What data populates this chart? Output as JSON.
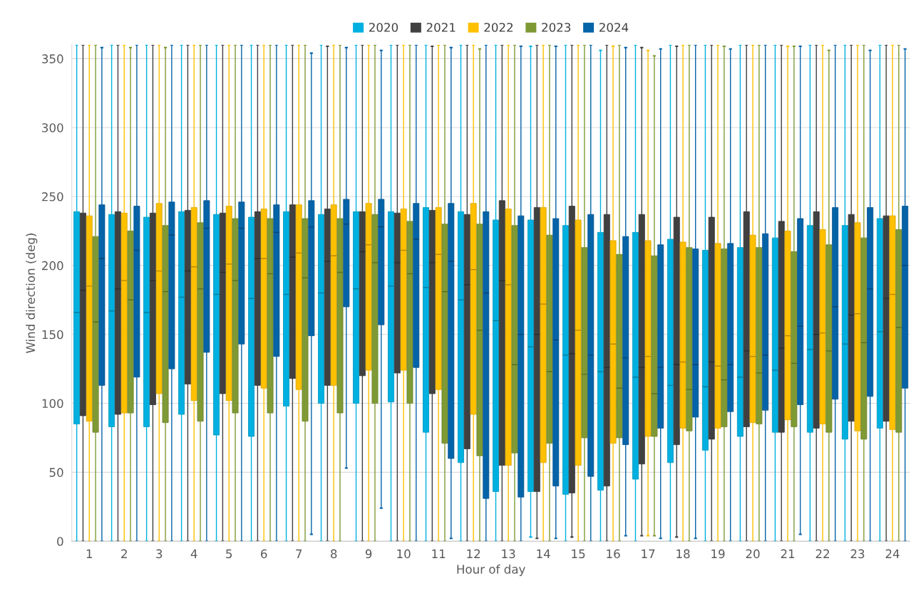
{
  "chart_data": {
    "type": "box",
    "xlabel": "Hour of day",
    "ylabel": "Wind direction (deg)",
    "categories": [
      "1",
      "2",
      "3",
      "4",
      "5",
      "6",
      "7",
      "8",
      "9",
      "10",
      "11",
      "12",
      "13",
      "14",
      "15",
      "16",
      "17",
      "18",
      "19",
      "20",
      "21",
      "22",
      "23",
      "24"
    ],
    "ylim": [
      0,
      360
    ],
    "yticks": [
      0,
      50,
      100,
      150,
      200,
      250,
      300,
      350
    ],
    "grid": "y",
    "legend": "top",
    "series": [
      {
        "name": "2020",
        "color": "#00b0e0",
        "boxes": [
          {
            "low": 0,
            "q1": 85,
            "median": 166,
            "q3": 239,
            "high": 360
          },
          {
            "low": 0,
            "q1": 83,
            "median": 167,
            "q3": 237,
            "high": 360
          },
          {
            "low": 0,
            "q1": 83,
            "median": 166,
            "q3": 235,
            "high": 360
          },
          {
            "low": 0,
            "q1": 92,
            "median": 177,
            "q3": 239,
            "high": 360
          },
          {
            "low": 0,
            "q1": 77,
            "median": 179,
            "q3": 237,
            "high": 360
          },
          {
            "low": 0,
            "q1": 76,
            "median": 176,
            "q3": 235,
            "high": 360
          },
          {
            "low": 0,
            "q1": 98,
            "median": 179,
            "q3": 239,
            "high": 360
          },
          {
            "low": 0,
            "q1": 100,
            "median": 180,
            "q3": 237,
            "high": 360
          },
          {
            "low": 0,
            "q1": 100,
            "median": 183,
            "q3": 239,
            "high": 360
          },
          {
            "low": 0,
            "q1": 101,
            "median": 185,
            "q3": 239,
            "high": 360
          },
          {
            "low": 0,
            "q1": 79,
            "median": 184,
            "q3": 242,
            "high": 360
          },
          {
            "low": 0,
            "q1": 57,
            "median": 175,
            "q3": 239,
            "high": 360
          },
          {
            "low": 0,
            "q1": 36,
            "median": 160,
            "q3": 233,
            "high": 360
          },
          {
            "low": 3,
            "q1": 36,
            "median": 141,
            "q3": 233,
            "high": 359
          },
          {
            "low": 0,
            "q1": 34,
            "median": 135,
            "q3": 229,
            "high": 360
          },
          {
            "low": 0,
            "q1": 37,
            "median": 123,
            "q3": 224,
            "high": 356
          },
          {
            "low": 0,
            "q1": 45,
            "median": 119,
            "q3": 224,
            "high": 360
          },
          {
            "low": 0,
            "q1": 57,
            "median": 113,
            "q3": 219,
            "high": 360
          },
          {
            "low": 0,
            "q1": 66,
            "median": 112,
            "q3": 211,
            "high": 360
          },
          {
            "low": 0,
            "q1": 76,
            "median": 119,
            "q3": 213,
            "high": 360
          },
          {
            "low": 0,
            "q1": 79,
            "median": 124,
            "q3": 220,
            "high": 360
          },
          {
            "low": 0,
            "q1": 79,
            "median": 139,
            "q3": 229,
            "high": 360
          },
          {
            "low": 0,
            "q1": 74,
            "median": 143,
            "q3": 229,
            "high": 360
          },
          {
            "low": 0,
            "q1": 82,
            "median": 152,
            "q3": 234,
            "high": 360
          }
        ]
      },
      {
        "name": "2021",
        "color": "#404040",
        "boxes": [
          {
            "low": 0,
            "q1": 91,
            "median": 182,
            "q3": 238,
            "high": 360
          },
          {
            "low": 0,
            "q1": 92,
            "median": 183,
            "q3": 239,
            "high": 360
          },
          {
            "low": 0,
            "q1": 99,
            "median": 189,
            "q3": 238,
            "high": 360
          },
          {
            "low": 0,
            "q1": 114,
            "median": 196,
            "q3": 240,
            "high": 360
          },
          {
            "low": 0,
            "q1": 107,
            "median": 195,
            "q3": 238,
            "high": 360
          },
          {
            "low": 0,
            "q1": 113,
            "median": 205,
            "q3": 239,
            "high": 360
          },
          {
            "low": 0,
            "q1": 118,
            "median": 206,
            "q3": 244,
            "high": 360
          },
          {
            "low": 0,
            "q1": 113,
            "median": 203,
            "q3": 241,
            "high": 359
          },
          {
            "low": 0,
            "q1": 120,
            "median": 210,
            "q3": 239,
            "high": 360
          },
          {
            "low": 0,
            "q1": 122,
            "median": 202,
            "q3": 238,
            "high": 360
          },
          {
            "low": 0,
            "q1": 107,
            "median": 202,
            "q3": 240,
            "high": 359
          },
          {
            "low": 0,
            "q1": 67,
            "median": 186,
            "q3": 237,
            "high": 360
          },
          {
            "low": 0,
            "q1": 55,
            "median": 189,
            "q3": 247,
            "high": 360
          },
          {
            "low": 2,
            "q1": 36,
            "median": 150,
            "q3": 242,
            "high": 360
          },
          {
            "low": 3,
            "q1": 35,
            "median": 136,
            "q3": 243,
            "high": 360
          },
          {
            "low": 0,
            "q1": 40,
            "median": 126,
            "q3": 237,
            "high": 360
          },
          {
            "low": 4,
            "q1": 56,
            "median": 126,
            "q3": 237,
            "high": 358
          },
          {
            "low": 3,
            "q1": 70,
            "median": 128,
            "q3": 235,
            "high": 359
          },
          {
            "low": 0,
            "q1": 74,
            "median": 130,
            "q3": 235,
            "high": 360
          },
          {
            "low": 0,
            "q1": 83,
            "median": 138,
            "q3": 239,
            "high": 360
          },
          {
            "low": 0,
            "q1": 79,
            "median": 140,
            "q3": 232,
            "high": 360
          },
          {
            "low": 0,
            "q1": 82,
            "median": 150,
            "q3": 239,
            "high": 360
          },
          {
            "low": 0,
            "q1": 87,
            "median": 164,
            "q3": 237,
            "high": 360
          },
          {
            "low": 0,
            "q1": 87,
            "median": 176,
            "q3": 236,
            "high": 360
          }
        ]
      },
      {
        "name": "2022",
        "color": "#ffc000",
        "boxes": [
          {
            "low": 0,
            "q1": 87,
            "median": 185,
            "q3": 236,
            "high": 360
          },
          {
            "low": 0,
            "q1": 93,
            "median": 189,
            "q3": 238,
            "high": 360
          },
          {
            "low": 0,
            "q1": 107,
            "median": 196,
            "q3": 245,
            "high": 360
          },
          {
            "low": 0,
            "q1": 102,
            "median": 199,
            "q3": 242,
            "high": 360
          },
          {
            "low": 0,
            "q1": 102,
            "median": 201,
            "q3": 243,
            "high": 360
          },
          {
            "low": 0,
            "q1": 111,
            "median": 205,
            "q3": 241,
            "high": 360
          },
          {
            "low": 0,
            "q1": 110,
            "median": 209,
            "q3": 244,
            "high": 360
          },
          {
            "low": 0,
            "q1": 113,
            "median": 207,
            "q3": 244,
            "high": 360
          },
          {
            "low": 0,
            "q1": 124,
            "median": 215,
            "q3": 245,
            "high": 360
          },
          {
            "low": 0,
            "q1": 124,
            "median": 211,
            "q3": 241,
            "high": 360
          },
          {
            "low": 0,
            "q1": 110,
            "median": 208,
            "q3": 242,
            "high": 360
          },
          {
            "low": 0,
            "q1": 92,
            "median": 197,
            "q3": 245,
            "high": 360
          },
          {
            "low": 0,
            "q1": 55,
            "median": 186,
            "q3": 241,
            "high": 360
          },
          {
            "low": 0,
            "q1": 57,
            "median": 172,
            "q3": 242,
            "high": 360
          },
          {
            "low": 0,
            "q1": 55,
            "median": 153,
            "q3": 233,
            "high": 360
          },
          {
            "low": 0,
            "q1": 71,
            "median": 143,
            "q3": 218,
            "high": 359
          },
          {
            "low": 4,
            "q1": 76,
            "median": 134,
            "q3": 218,
            "high": 356
          },
          {
            "low": 0,
            "q1": 82,
            "median": 130,
            "q3": 217,
            "high": 360
          },
          {
            "low": 0,
            "q1": 82,
            "median": 127,
            "q3": 216,
            "high": 360
          },
          {
            "low": 0,
            "q1": 86,
            "median": 134,
            "q3": 222,
            "high": 360
          },
          {
            "low": 0,
            "q1": 88,
            "median": 149,
            "q3": 225,
            "high": 359
          },
          {
            "low": 0,
            "q1": 85,
            "median": 151,
            "q3": 226,
            "high": 360
          },
          {
            "low": 0,
            "q1": 80,
            "median": 165,
            "q3": 231,
            "high": 360
          },
          {
            "low": 0,
            "q1": 81,
            "median": 179,
            "q3": 236,
            "high": 360
          }
        ]
      },
      {
        "name": "2023",
        "color": "#7f9a35",
        "boxes": [
          {
            "low": 0,
            "q1": 79,
            "median": 159,
            "q3": 221,
            "high": 360
          },
          {
            "low": 0,
            "q1": 93,
            "median": 175,
            "q3": 225,
            "high": 358
          },
          {
            "low": 0,
            "q1": 86,
            "median": 181,
            "q3": 229,
            "high": 358
          },
          {
            "low": 0,
            "q1": 87,
            "median": 183,
            "q3": 231,
            "high": 360
          },
          {
            "low": 0,
            "q1": 93,
            "median": 189,
            "q3": 234,
            "high": 360
          },
          {
            "low": 0,
            "q1": 93,
            "median": 194,
            "q3": 234,
            "high": 360
          },
          {
            "low": 0,
            "q1": 87,
            "median": 191,
            "q3": 234,
            "high": 360
          },
          {
            "low": 0,
            "q1": 93,
            "median": 195,
            "q3": 234,
            "high": 360
          },
          {
            "low": 0,
            "q1": 100,
            "median": 202,
            "q3": 237,
            "high": 360
          },
          {
            "low": 0,
            "q1": 100,
            "median": 194,
            "q3": 232,
            "high": 360
          },
          {
            "low": 0,
            "q1": 71,
            "median": 181,
            "q3": 230,
            "high": 360
          },
          {
            "low": 0,
            "q1": 62,
            "median": 153,
            "q3": 230,
            "high": 357
          },
          {
            "low": 0,
            "q1": 64,
            "median": 128,
            "q3": 229,
            "high": 360
          },
          {
            "low": 0,
            "q1": 71,
            "median": 123,
            "q3": 222,
            "high": 360
          },
          {
            "low": 0,
            "q1": 75,
            "median": 121,
            "q3": 213,
            "high": 360
          },
          {
            "low": 0,
            "q1": 75,
            "median": 111,
            "q3": 208,
            "high": 360
          },
          {
            "low": 4,
            "q1": 76,
            "median": 107,
            "q3": 207,
            "high": 352
          },
          {
            "low": 0,
            "q1": 80,
            "median": 110,
            "q3": 213,
            "high": 360
          },
          {
            "low": 0,
            "q1": 83,
            "median": 117,
            "q3": 212,
            "high": 359
          },
          {
            "low": 0,
            "q1": 85,
            "median": 122,
            "q3": 213,
            "high": 360
          },
          {
            "low": 0,
            "q1": 83,
            "median": 129,
            "q3": 210,
            "high": 359
          },
          {
            "low": 0,
            "q1": 79,
            "median": 138,
            "q3": 215,
            "high": 356
          },
          {
            "low": 0,
            "q1": 74,
            "median": 144,
            "q3": 220,
            "high": 360
          },
          {
            "low": 0,
            "q1": 79,
            "median": 155,
            "q3": 226,
            "high": 360
          }
        ]
      },
      {
        "name": "2024",
        "color": "#0563a8",
        "boxes": [
          {
            "low": 0,
            "q1": 113,
            "median": 205,
            "q3": 244,
            "high": 358
          },
          {
            "low": 0,
            "q1": 119,
            "median": 211,
            "q3": 243,
            "high": 360
          },
          {
            "low": 0,
            "q1": 125,
            "median": 222,
            "q3": 246,
            "high": 360
          },
          {
            "low": 0,
            "q1": 137,
            "median": 227,
            "q3": 247,
            "high": 360
          },
          {
            "low": 0,
            "q1": 143,
            "median": 227,
            "q3": 246,
            "high": 360
          },
          {
            "low": 0,
            "q1": 134,
            "median": 224,
            "q3": 244,
            "high": 360
          },
          {
            "low": 5,
            "q1": 149,
            "median": 228,
            "q3": 247,
            "high": 354
          },
          {
            "low": 53,
            "q1": 170,
            "median": 230,
            "q3": 248,
            "high": 358
          },
          {
            "low": 24,
            "q1": 157,
            "median": 228,
            "q3": 248,
            "high": 356
          },
          {
            "low": 0,
            "q1": 126,
            "median": 219,
            "q3": 245,
            "high": 360
          },
          {
            "low": 2,
            "q1": 60,
            "median": 203,
            "q3": 245,
            "high": 358
          },
          {
            "low": 0,
            "q1": 31,
            "median": 180,
            "q3": 239,
            "high": 360
          },
          {
            "low": 0,
            "q1": 32,
            "median": 150,
            "q3": 236,
            "high": 359
          },
          {
            "low": 2,
            "q1": 40,
            "median": 146,
            "q3": 234,
            "high": 359
          },
          {
            "low": 0,
            "q1": 47,
            "median": 135,
            "q3": 237,
            "high": 360
          },
          {
            "low": 4,
            "q1": 70,
            "median": 133,
            "q3": 221,
            "high": 358
          },
          {
            "low": 2,
            "q1": 82,
            "median": 126,
            "q3": 215,
            "high": 357
          },
          {
            "low": 2,
            "q1": 90,
            "median": 128,
            "q3": 212,
            "high": 360
          },
          {
            "low": 0,
            "q1": 94,
            "median": 128,
            "q3": 216,
            "high": 357
          },
          {
            "low": 0,
            "q1": 95,
            "median": 135,
            "q3": 223,
            "high": 360
          },
          {
            "low": 5,
            "q1": 99,
            "median": 156,
            "q3": 234,
            "high": 359
          },
          {
            "low": 0,
            "q1": 103,
            "median": 170,
            "q3": 242,
            "high": 360
          },
          {
            "low": 0,
            "q1": 105,
            "median": 183,
            "q3": 242,
            "high": 356
          },
          {
            "low": 0,
            "q1": 111,
            "median": 200,
            "q3": 243,
            "high": 357
          }
        ]
      }
    ]
  }
}
